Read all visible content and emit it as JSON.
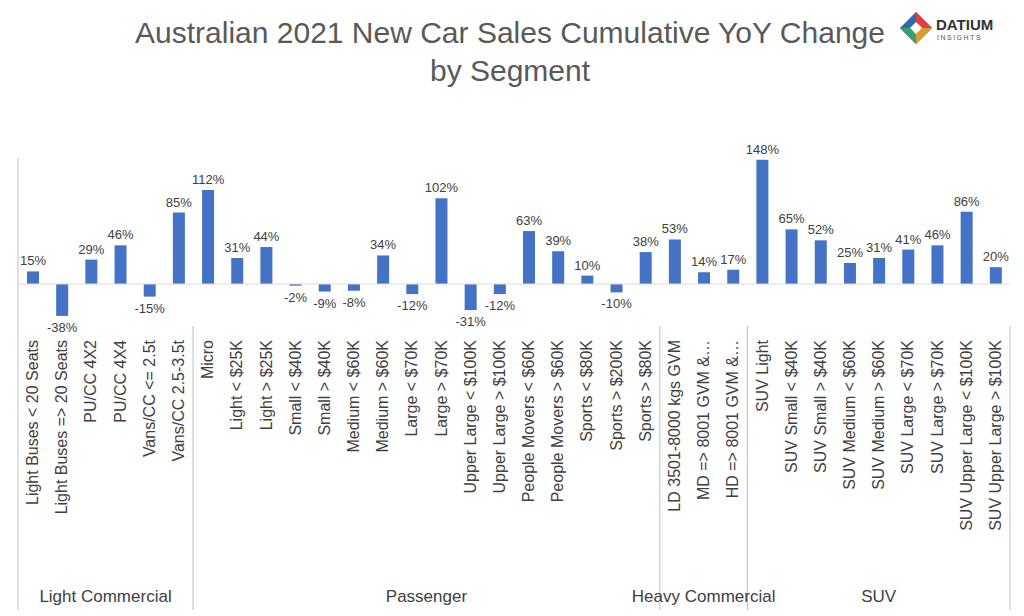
{
  "chart_data": {
    "type": "bar",
    "title": "Australian 2021 New Car Sales Cumulative YoY Change by Segment",
    "logo": [
      "DATIUM",
      "INSIGHTS"
    ],
    "categories": [
      "Light Buses < 20 Seats",
      "Light Buses => 20 Seats",
      "PU/CC 4X2",
      "PU/CC 4X4",
      "Vans/CC <= 2.5t",
      "Vans/CC 2.5-3.5t",
      "Micro",
      "Light < $25K",
      "Light > $25K",
      "Small < $40K",
      "Small > $40K",
      "Medium < $60K",
      "Medium > $60K",
      "Large < $70K",
      "Large > $70K",
      "Upper Large < $100K",
      "Upper Large > $100K",
      "People Movers < $60K",
      "People Movers > $60K",
      "Sports < $80K",
      "Sports > $200K",
      "Sports > $80K",
      "LD 3501-8000 kgs GVM",
      "MD => 8001 GVM &…",
      "HD => 8001 GVM &…",
      "SUV Light",
      "SUV Small < $40K",
      "SUV Small > $40K",
      "SUV Medium < $60K",
      "SUV Medium > $60K",
      "SUV Large < $70K",
      "SUV Large > $70K",
      "SUV Upper Large < $100K",
      "SUV Upper Large > $100K"
    ],
    "groups": [
      "Light Commercial",
      "Light Commercial",
      "Light Commercial",
      "Light Commercial",
      "Light Commercial",
      "Light Commercial",
      "Passenger",
      "Passenger",
      "Passenger",
      "Passenger",
      "Passenger",
      "Passenger",
      "Passenger",
      "Passenger",
      "Passenger",
      "Passenger",
      "Passenger",
      "Passenger",
      "Passenger",
      "Passenger",
      "Passenger",
      "Passenger",
      "Heavy Commercial",
      "Heavy Commercial",
      "Heavy Commercial",
      "SUV",
      "SUV",
      "SUV",
      "SUV",
      "SUV",
      "SUV",
      "SUV",
      "SUV",
      "SUV"
    ],
    "values": [
      15,
      -38,
      29,
      46,
      -15,
      85,
      112,
      31,
      44,
      -2,
      -9,
      -8,
      34,
      -12,
      102,
      -31,
      -12,
      63,
      39,
      10,
      -10,
      38,
      53,
      14,
      17,
      148,
      65,
      52,
      25,
      31,
      41,
      46,
      86,
      20
    ],
    "value_labels": [
      "15%",
      "-38%",
      "29%",
      "46%",
      "-15%",
      "85%",
      "112%",
      "31%",
      "44%",
      "-2%",
      "-9%",
      "-8%",
      "34%",
      "-12%",
      "102%",
      "-31%",
      "-12%",
      "63%",
      "39%",
      "10%",
      "-10%",
      "38%",
      "53%",
      "14%",
      "17%",
      "148%",
      "65%",
      "52%",
      "25%",
      "31%",
      "41%",
      "46%",
      "86%",
      "20%"
    ],
    "color": "#4472c4",
    "ylim": [
      -50,
      150
    ],
    "data_labels": true,
    "tick_labels": "x"
  }
}
